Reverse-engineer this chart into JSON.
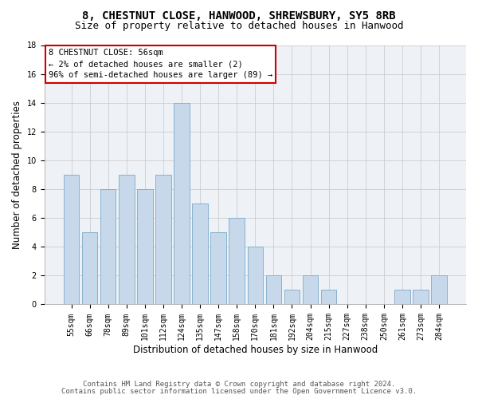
{
  "title1": "8, CHESTNUT CLOSE, HANWOOD, SHREWSBURY, SY5 8RB",
  "title2": "Size of property relative to detached houses in Hanwood",
  "xlabel": "Distribution of detached houses by size in Hanwood",
  "ylabel": "Number of detached properties",
  "categories": [
    "55sqm",
    "66sqm",
    "78sqm",
    "89sqm",
    "101sqm",
    "112sqm",
    "124sqm",
    "135sqm",
    "147sqm",
    "158sqm",
    "170sqm",
    "181sqm",
    "192sqm",
    "204sqm",
    "215sqm",
    "227sqm",
    "238sqm",
    "250sqm",
    "261sqm",
    "273sqm",
    "284sqm"
  ],
  "values": [
    9,
    5,
    8,
    9,
    8,
    9,
    14,
    7,
    5,
    6,
    4,
    2,
    1,
    2,
    1,
    0,
    0,
    0,
    1,
    1,
    2
  ],
  "bar_color": "#c8d8eb",
  "bar_edge_color": "#7aaac8",
  "annotation_text": "8 CHESTNUT CLOSE: 56sqm\n← 2% of detached houses are smaller (2)\n96% of semi-detached houses are larger (89) →",
  "annotation_box_color": "#ffffff",
  "annotation_box_edge_color": "#cc0000",
  "ylim": [
    0,
    18
  ],
  "yticks": [
    0,
    2,
    4,
    6,
    8,
    10,
    12,
    14,
    16,
    18
  ],
  "footer1": "Contains HM Land Registry data © Crown copyright and database right 2024.",
  "footer2": "Contains public sector information licensed under the Open Government Licence v3.0.",
  "bg_color": "#ffffff",
  "plot_bg_color": "#eef2f7",
  "grid_color": "#cccccc",
  "title1_fontsize": 10,
  "title2_fontsize": 9,
  "xlabel_fontsize": 8.5,
  "ylabel_fontsize": 8.5,
  "tick_fontsize": 7,
  "footer_fontsize": 6.5,
  "annotation_fontsize": 7.5
}
